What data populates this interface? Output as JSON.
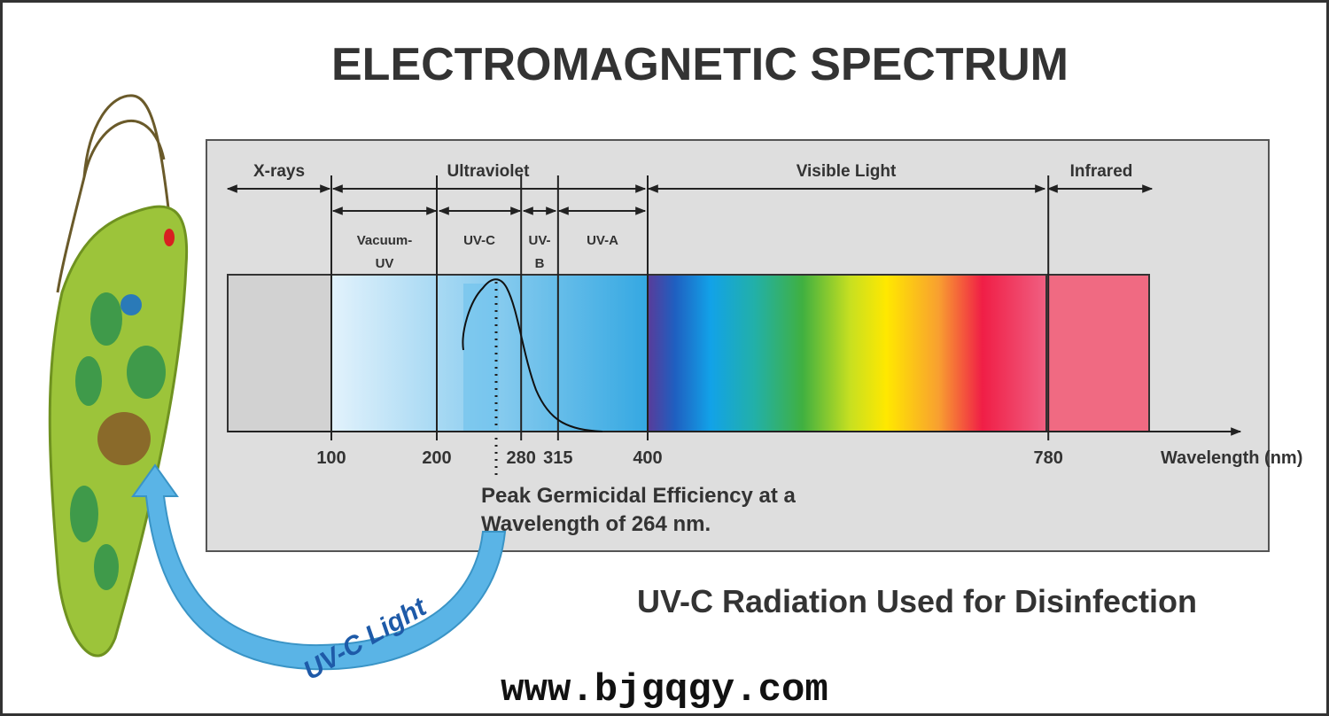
{
  "title": "ELECTROMAGNETIC SPECTRUM",
  "bands": {
    "x_rays": "X-rays",
    "ultraviolet": "Ultraviolet",
    "visible": "Visible Light",
    "infrared": "Infrared"
  },
  "uv_bands": [
    [
      "Vacuum-",
      "UV"
    ],
    [
      "UV-C"
    ],
    [
      "UV-",
      "B"
    ],
    [
      "UV-A"
    ]
  ],
  "axis": {
    "ticks": [
      100,
      200,
      280,
      315,
      400,
      780
    ],
    "label": "Wavelength (nm)"
  },
  "annotation": [
    "Peak Germicidal Efficiency at a",
    "Wavelength of 264 nm."
  ],
  "subtitle": "UV-C Radiation Used for Disinfection",
  "arrow_label": "UV-C Light",
  "website": "www.bjgqgy.com"
}
